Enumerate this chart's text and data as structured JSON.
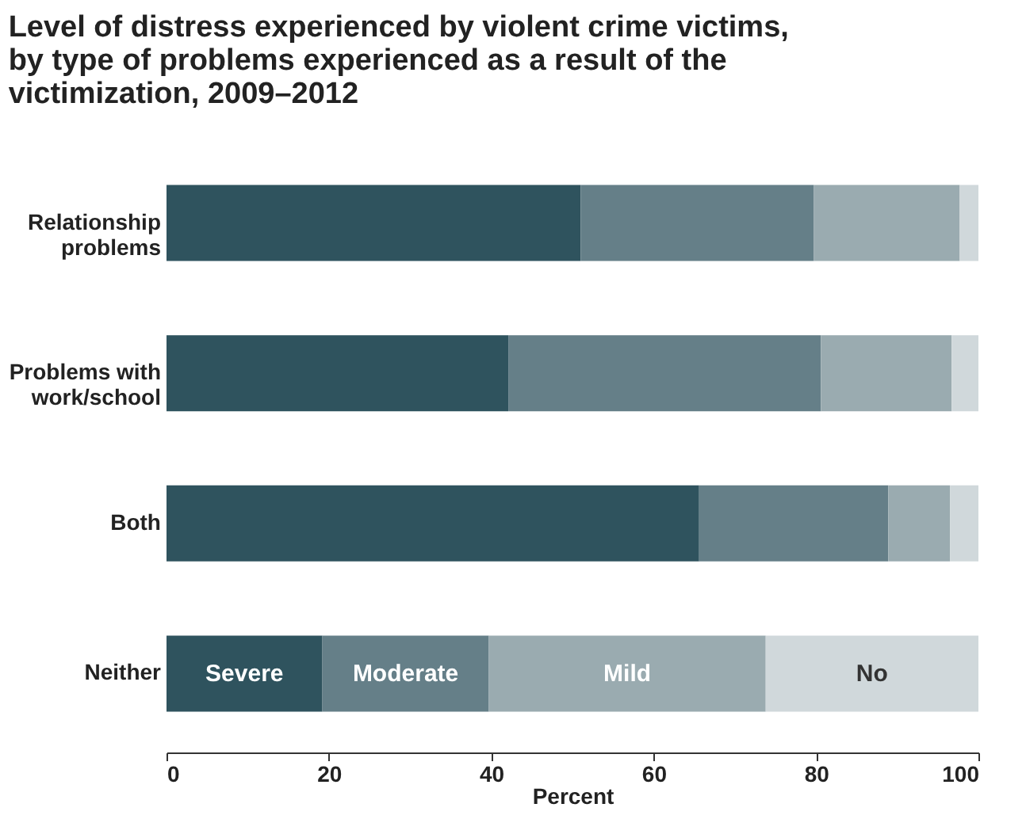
{
  "chart_data": {
    "type": "bar",
    "orientation": "horizontal",
    "stacked": true,
    "title": "Level of distress experienced by violent crime victims, by type of problems experienced as a result of the victimization, 2009–2012",
    "xlabel": "Percent",
    "categories": [
      "Relationship problems",
      "Problems with work/school",
      "Both",
      "Neither"
    ],
    "series": [
      {
        "name": "Severe",
        "color": "#2f535e",
        "values": [
          51,
          42.1,
          65.6,
          19.2
        ]
      },
      {
        "name": "Moderate",
        "color": "#657f88",
        "values": [
          28.7,
          38.5,
          23.3,
          20.5
        ]
      },
      {
        "name": "Mild",
        "color": "#9aabb0",
        "values": [
          18,
          16.1,
          7.6,
          34.1
        ]
      },
      {
        "name": "No",
        "color": "#d0d8db",
        "values": [
          2.3,
          3.3,
          3.5,
          26.2
        ]
      }
    ],
    "xlim": [
      0,
      100
    ],
    "xticks": [
      0,
      20,
      40,
      60,
      80,
      100
    ],
    "grid": false,
    "legend": false
  }
}
